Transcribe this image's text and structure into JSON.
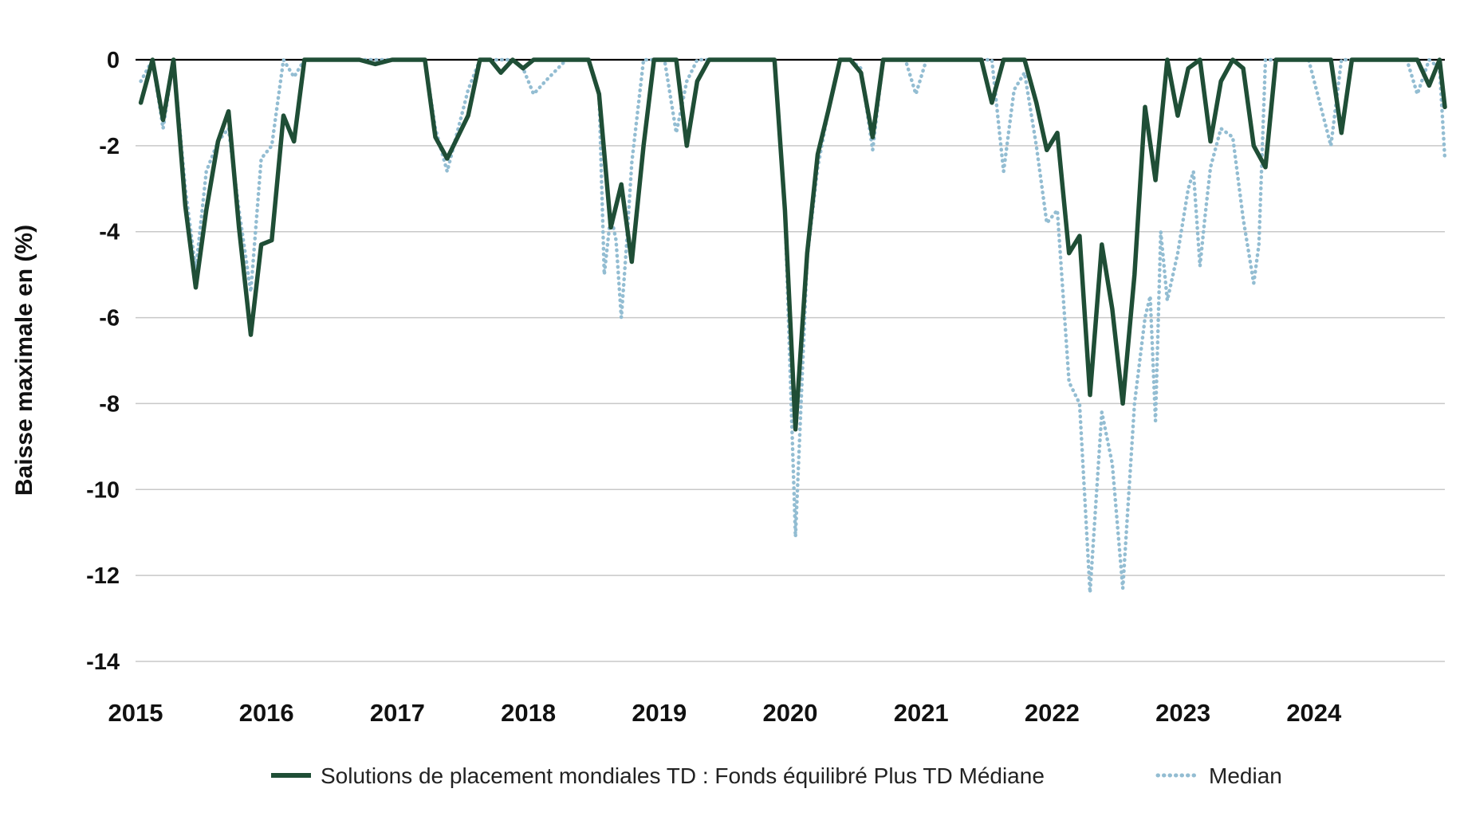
{
  "chart_data": {
    "type": "line",
    "title": "",
    "xlabel": "",
    "ylabel": "Baisse maximale en (%)",
    "ylim": [
      -14,
      0
    ],
    "yticks": [
      0,
      -2,
      -4,
      -6,
      -8,
      -10,
      -12,
      -14
    ],
    "xticks": [
      "2015",
      "2016",
      "2017",
      "2018",
      "2019",
      "2020",
      "2021",
      "2022",
      "2023",
      "2024"
    ],
    "xlim": [
      2015.0,
      2025.0
    ],
    "grid": true,
    "legend_position": "bottom",
    "series": [
      {
        "name": "Solutions de placement mondiales TD : Fonds équilibré Plus TD Médiane",
        "color": "#1f4e36",
        "style": "solid",
        "x": [
          2015.04,
          2015.13,
          2015.21,
          2015.29,
          2015.38,
          2015.46,
          2015.54,
          2015.63,
          2015.71,
          2015.79,
          2015.88,
          2015.96,
          2016.04,
          2016.13,
          2016.21,
          2016.29,
          2016.38,
          2016.54,
          2016.71,
          2016.83,
          2016.96,
          2017.13,
          2017.21,
          2017.29,
          2017.38,
          2017.54,
          2017.63,
          2017.71,
          2017.79,
          2017.88,
          2017.96,
          2018.04,
          2018.13,
          2018.29,
          2018.46,
          2018.54,
          2018.63,
          2018.71,
          2018.79,
          2018.88,
          2018.96,
          2019.04,
          2019.13,
          2019.21,
          2019.29,
          2019.38,
          2019.46,
          2019.54,
          2019.71,
          2019.88,
          2019.96,
          2020.04,
          2020.13,
          2020.21,
          2020.29,
          2020.38,
          2020.46,
          2020.54,
          2020.63,
          2020.71,
          2020.79,
          2021.04,
          2021.29,
          2021.38,
          2021.46,
          2021.54,
          2021.63,
          2021.71,
          2021.79,
          2021.88,
          2021.96,
          2022.04,
          2022.13,
          2022.21,
          2022.29,
          2022.38,
          2022.46,
          2022.54,
          2022.63,
          2022.71,
          2022.79,
          2022.88,
          2022.96,
          2023.04,
          2023.13,
          2023.21,
          2023.29,
          2023.38,
          2023.46,
          2023.54,
          2023.63,
          2023.71,
          2023.79,
          2023.96,
          2024.13,
          2024.21,
          2024.29,
          2024.46,
          2024.63,
          2024.71,
          2024.79,
          2024.88,
          2024.96,
          2025.0
        ],
        "y": [
          -1.0,
          0.0,
          -1.4,
          0.0,
          -3.4,
          -5.3,
          -3.5,
          -1.9,
          -1.2,
          -3.9,
          -6.4,
          -4.3,
          -4.2,
          -1.3,
          -1.9,
          0.0,
          0.0,
          0.0,
          0.0,
          -0.1,
          0.0,
          0.0,
          0.0,
          -1.8,
          -2.3,
          -1.3,
          0.0,
          0.0,
          -0.3,
          0.0,
          -0.2,
          0.0,
          0.0,
          0.0,
          0.0,
          -0.8,
          -3.9,
          -2.9,
          -4.7,
          -2.0,
          0.0,
          0.0,
          0.0,
          -2.0,
          -0.5,
          0.0,
          0.0,
          0.0,
          0.0,
          0.0,
          -3.5,
          -8.6,
          -4.5,
          -2.2,
          -1.2,
          0.0,
          0.0,
          -0.3,
          -1.8,
          0.0,
          0.0,
          0.0,
          0.0,
          0.0,
          0.0,
          -1.0,
          0.0,
          0.0,
          0.0,
          -1.0,
          -2.1,
          -1.7,
          -4.5,
          -4.1,
          -7.8,
          -4.3,
          -5.8,
          -8.0,
          -5.0,
          -1.1,
          -2.8,
          0.0,
          -1.3,
          -0.2,
          0.0,
          -1.9,
          -0.5,
          0.0,
          -0.2,
          -2.0,
          -2.5,
          0.0,
          0.0,
          0.0,
          0.0,
          -1.7,
          0.0,
          0.0,
          0.0,
          0.0,
          0.0,
          -0.6,
          0.0,
          -1.1
        ]
      },
      {
        "name": "Median",
        "color": "#93bdd2",
        "style": "dotted",
        "x": [
          2015.04,
          2015.13,
          2015.21,
          2015.29,
          2015.38,
          2015.46,
          2015.54,
          2015.63,
          2015.71,
          2015.79,
          2015.88,
          2015.96,
          2016.04,
          2016.13,
          2016.21,
          2016.29,
          2016.38,
          2016.54,
          2016.71,
          2016.83,
          2016.96,
          2017.13,
          2017.21,
          2017.29,
          2017.38,
          2017.54,
          2017.63,
          2017.71,
          2017.79,
          2017.88,
          2017.96,
          2018.04,
          2018.13,
          2018.29,
          2018.46,
          2018.54,
          2018.58,
          2018.63,
          2018.67,
          2018.71,
          2018.75,
          2018.79,
          2018.88,
          2018.96,
          2019.04,
          2019.13,
          2019.21,
          2019.29,
          2019.38,
          2019.46,
          2019.54,
          2019.71,
          2019.88,
          2019.96,
          2020.04,
          2020.13,
          2020.21,
          2020.29,
          2020.38,
          2020.46,
          2020.54,
          2020.63,
          2020.71,
          2020.79,
          2020.88,
          2020.96,
          2021.04,
          2021.29,
          2021.38,
          2021.46,
          2021.54,
          2021.63,
          2021.71,
          2021.79,
          2021.88,
          2021.96,
          2022.04,
          2022.13,
          2022.21,
          2022.29,
          2022.38,
          2022.46,
          2022.54,
          2022.63,
          2022.71,
          2022.75,
          2022.79,
          2022.83,
          2022.88,
          2022.96,
          2023.04,
          2023.08,
          2023.13,
          2023.17,
          2023.21,
          2023.29,
          2023.38,
          2023.46,
          2023.54,
          2023.58,
          2023.63,
          2023.71,
          2023.79,
          2023.96,
          2024.13,
          2024.21,
          2024.29,
          2024.46,
          2024.63,
          2024.71,
          2024.79,
          2024.88,
          2024.96,
          2025.0
        ],
        "y": [
          -0.5,
          0.0,
          -1.6,
          0.0,
          -3.0,
          -4.9,
          -2.6,
          -1.9,
          -1.6,
          -3.5,
          -5.4,
          -2.3,
          -2.0,
          0.0,
          -0.4,
          0.0,
          0.0,
          0.0,
          0.0,
          0.0,
          0.0,
          0.0,
          0.0,
          -1.6,
          -2.6,
          -0.7,
          0.0,
          0.0,
          0.0,
          0.0,
          -0.2,
          -0.8,
          -0.5,
          0.0,
          0.0,
          -0.8,
          -5.0,
          -3.6,
          -4.2,
          -6.0,
          -4.3,
          -2.4,
          0.0,
          0.0,
          0.0,
          -1.7,
          -0.5,
          0.0,
          0.0,
          0.0,
          0.0,
          0.0,
          0.0,
          -3.5,
          -11.1,
          -4.6,
          -2.5,
          -1.2,
          0.0,
          0.0,
          -0.2,
          -2.1,
          0.0,
          0.0,
          0.0,
          -0.8,
          0.0,
          0.0,
          0.0,
          0.0,
          0.0,
          -2.6,
          -0.7,
          -0.3,
          -2.0,
          -3.8,
          -3.5,
          -7.5,
          -8.0,
          -12.4,
          -8.2,
          -9.4,
          -12.3,
          -8.0,
          -6.0,
          -5.5,
          -8.4,
          -4.0,
          -5.6,
          -4.5,
          -3.0,
          -2.6,
          -4.8,
          -3.6,
          -2.5,
          -1.6,
          -1.8,
          -3.7,
          -5.2,
          -4.3,
          0.0,
          0.0,
          0.0,
          0.0,
          -2.0,
          0.0,
          0.0,
          0.0,
          0.0,
          0.0,
          -0.8,
          0.0,
          -0.2,
          -2.3
        ]
      }
    ]
  }
}
